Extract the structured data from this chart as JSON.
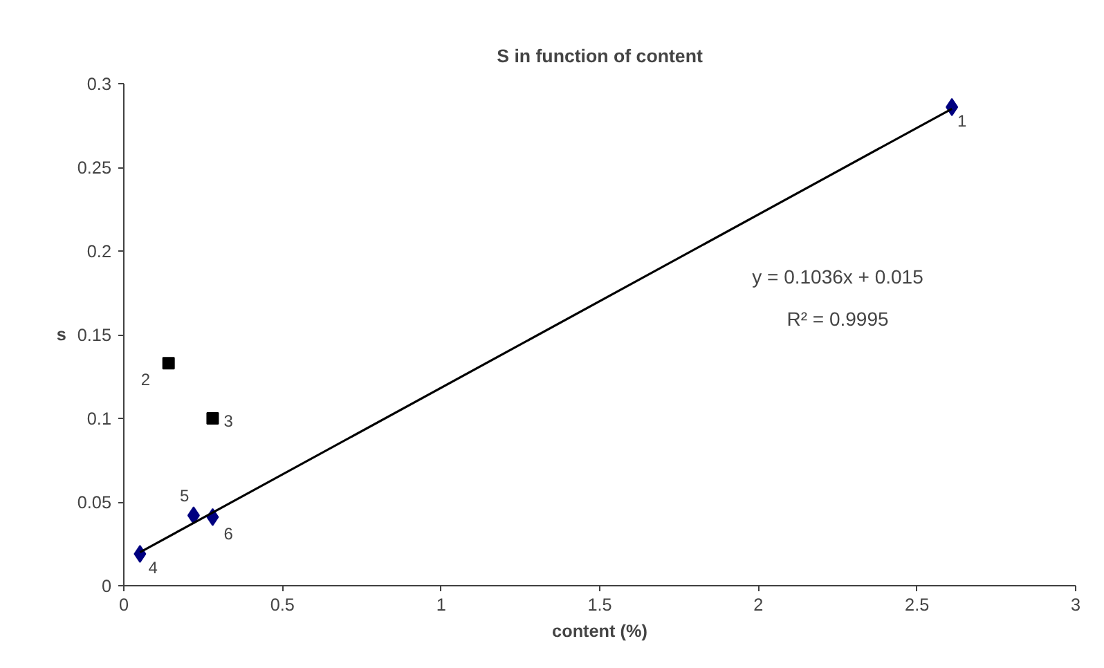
{
  "chart_data": {
    "type": "scatter",
    "title": "S in function of content",
    "xlabel": "content (%)",
    "ylabel": "s",
    "xlim": [
      0,
      3
    ],
    "xticks": [
      0,
      0.5,
      1,
      1.5,
      2,
      2.5,
      3
    ],
    "ylim": [
      0,
      0.3
    ],
    "yticks": [
      0,
      0.05,
      0.1,
      0.15,
      0.2,
      0.25,
      0.3
    ],
    "grid": false,
    "series": [
      {
        "marker": "diamond",
        "color": "#000080",
        "x": [
          2.61,
          0.051,
          0.22,
          0.28
        ],
        "values": [
          0.286,
          0.019,
          0.042,
          0.041
        ]
      },
      {
        "marker": "square",
        "color": "#000000",
        "x": [
          0.141,
          0.28
        ],
        "values": [
          0.133,
          0.1
        ]
      },
      {
        "type": "line",
        "marker": "none",
        "line_style": "solid",
        "color": "#000000",
        "x": [
          0.051,
          2.61
        ],
        "values": [
          0.02,
          0.285
        ]
      }
    ],
    "annotations": [
      {
        "text": "1",
        "x": 2.61,
        "y": 0.286
      },
      {
        "text": "2",
        "x": 0.141,
        "y": 0.133
      },
      {
        "text": "3",
        "x": 0.28,
        "y": 0.1
      },
      {
        "text": "4",
        "x": 0.051,
        "y": 0.019
      },
      {
        "text": "5",
        "x": 0.22,
        "y": 0.042
      },
      {
        "text": "6",
        "x": 0.28,
        "y": 0.041
      },
      "y = 0.1036x + 0.015",
      "R² = 0.9995"
    ]
  }
}
